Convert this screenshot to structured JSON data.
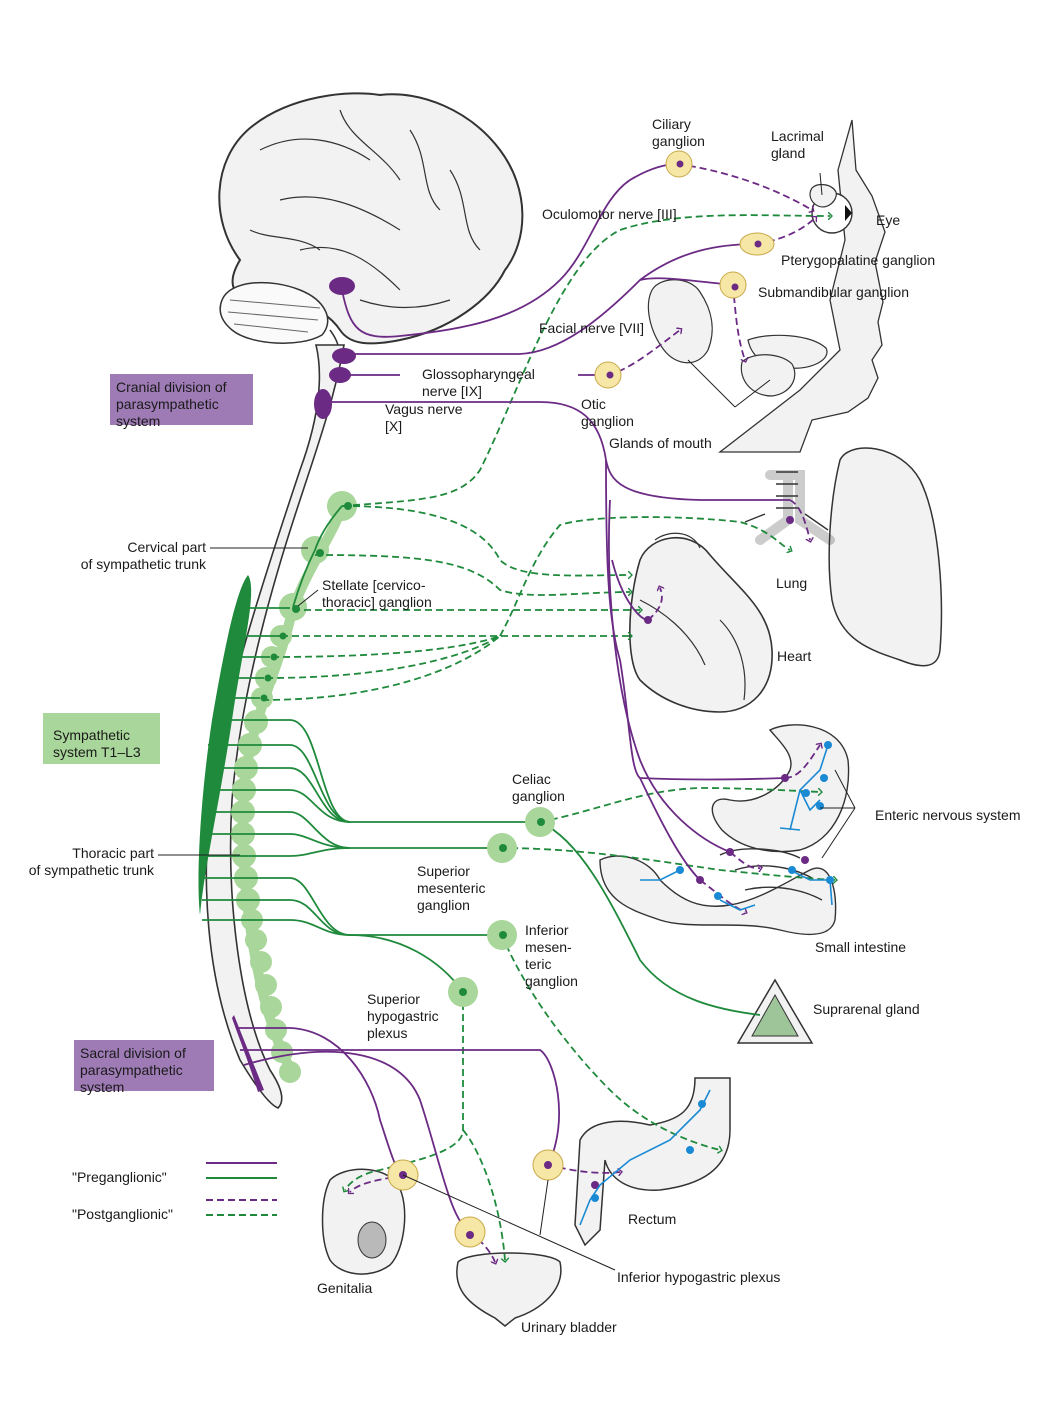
{
  "colors": {
    "parasympathetic": "#6b2a84",
    "sympathetic": "#1f8a3c",
    "sympathetic_light": "#a9d69a",
    "parasympathetic_box": "#9e7bb5",
    "ganglion_yellow": "#f6e7a6",
    "enteric": "#1a8ad4",
    "organ_fill": "#f2f2f2",
    "outline": "#333333"
  },
  "labels": {
    "ciliary_ganglion": "Ciliary\nganglion",
    "lacrimal_gland": "Lacrimal\ngland",
    "oculomotor_nerve": "Oculomotor nerve [III]",
    "eye": "Eye",
    "pterygopalatine_ganglion": "Pterygopalatine ganglion",
    "submandibular_ganglion": "Submandibular ganglion",
    "facial_nerve": "Facial nerve [VII]",
    "glossopharyngeal_nerve": "Glossopharyngeal\nnerve [IX]",
    "otic_ganglion": "Otic\nganglion",
    "vagus_nerve": "Vagus nerve\n[X]",
    "glands_of_mouth": "Glands of mouth",
    "cervical_part": "Cervical part\nof sympathetic trunk",
    "stellate_ganglion": "Stellate [cervico-\nthoracic] ganglion",
    "lung": "Lung",
    "heart": "Heart",
    "thoracic_part": "Thoracic part\nof sympathetic trunk",
    "celiac_ganglion": "Celiac\nganglion",
    "enteric_nervous_system": "Enteric nervous system",
    "superior_mesenteric_ganglion": "Superior\nmesenteric\nganglion",
    "small_intestine": "Small intestine",
    "inferior_mesenteric_ganglion": "Inferior\nmesen-\nteric\nganglion",
    "suprarenal_gland": "Suprarenal gland",
    "superior_hypogastric_plexus": "Superior\nhypogastric\nplexus",
    "rectum": "Rectum",
    "genitalia": "Genitalia",
    "inferior_hypogastric_plexus": "Inferior hypogastric plexus",
    "urinary_bladder": "Urinary bladder"
  },
  "boxes": {
    "cranial_division": "Cranial division of\nparasympathetic\nsystem",
    "sympathetic_system": "Sympathetic\nsystem T1–L3",
    "sacral_division": "Sacral division of\nparasympathetic\nsystem"
  },
  "legend": {
    "preganglionic": "\"Preganglionic\"",
    "postganglionic": "\"Postganglionic\""
  }
}
